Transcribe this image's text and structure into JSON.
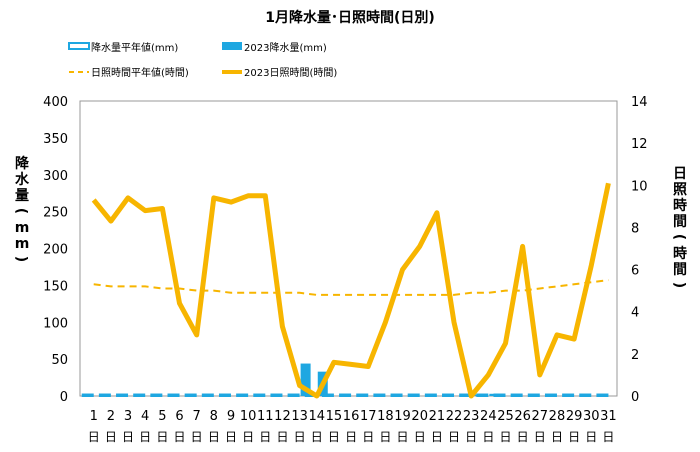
{
  "chart_data": {
    "type": "bar+line",
    "title": "1月降水量･日照時間(日別)",
    "categories": [
      "1",
      "2",
      "3",
      "4",
      "5",
      "6",
      "7",
      "8",
      "9",
      "10",
      "11",
      "12",
      "13",
      "14",
      "15",
      "16",
      "17",
      "18",
      "19",
      "20",
      "21",
      "22",
      "23",
      "24",
      "25",
      "26",
      "27",
      "28",
      "29",
      "30",
      "31"
    ],
    "category_suffix": "日",
    "ylabel_left": "降水量(mm)",
    "ylabel_right": "日照時間(時間)",
    "ylim_left": [
      0,
      400
    ],
    "ylim_right": [
      0,
      14
    ],
    "yticks_left": [
      "0",
      "50",
      "100",
      "150",
      "200",
      "250",
      "300",
      "350",
      "400"
    ],
    "yticks_right": [
      "0",
      "2",
      "4",
      "6",
      "8",
      "10",
      "12",
      "14"
    ],
    "grid": false,
    "legend_position": "top",
    "series": [
      {
        "name": "降水量平年値(mm)",
        "kind": "bar",
        "axis": "left",
        "color": "#1EA7E1",
        "style": "outline",
        "values": [
          2,
          2,
          2,
          2,
          2,
          2,
          2,
          2,
          2,
          2,
          2,
          2,
          2,
          2,
          2,
          2,
          2,
          2,
          2,
          2,
          2,
          2,
          2,
          2,
          2,
          2,
          2,
          2,
          2,
          2,
          2
        ]
      },
      {
        "name": "2023降水量(mm)",
        "kind": "bar",
        "axis": "left",
        "color": "#1EA7E1",
        "style": "filled",
        "values": [
          0,
          0,
          0,
          0,
          0,
          0,
          0,
          0,
          0,
          0,
          0,
          0,
          44,
          33,
          0,
          0,
          0,
          0,
          0,
          0,
          0,
          0,
          2,
          3,
          0,
          0,
          0,
          0,
          0,
          0,
          0
        ]
      },
      {
        "name": "日照時間平年値(時間)",
        "kind": "line",
        "axis": "right",
        "color": "#F7B500",
        "style": "dashed",
        "values": [
          5.3,
          5.2,
          5.2,
          5.2,
          5.1,
          5.1,
          5.0,
          5.0,
          4.9,
          4.9,
          4.9,
          4.9,
          4.9,
          4.8,
          4.8,
          4.8,
          4.8,
          4.8,
          4.8,
          4.8,
          4.8,
          4.8,
          4.9,
          4.9,
          5.0,
          5.0,
          5.1,
          5.2,
          5.3,
          5.4,
          5.5
        ]
      },
      {
        "name": "2023日照時間(時間)",
        "kind": "line",
        "axis": "right",
        "color": "#F7B500",
        "style": "solid",
        "values": [
          9.3,
          8.3,
          9.4,
          8.8,
          8.9,
          4.4,
          2.9,
          9.4,
          9.2,
          9.5,
          9.5,
          3.3,
          0.5,
          0.0,
          1.6,
          1.5,
          1.4,
          3.5,
          6.0,
          7.1,
          8.7,
          3.5,
          0.0,
          1.0,
          2.5,
          7.1,
          1.0,
          2.9,
          2.7,
          6.2,
          10.1
        ]
      }
    ]
  }
}
